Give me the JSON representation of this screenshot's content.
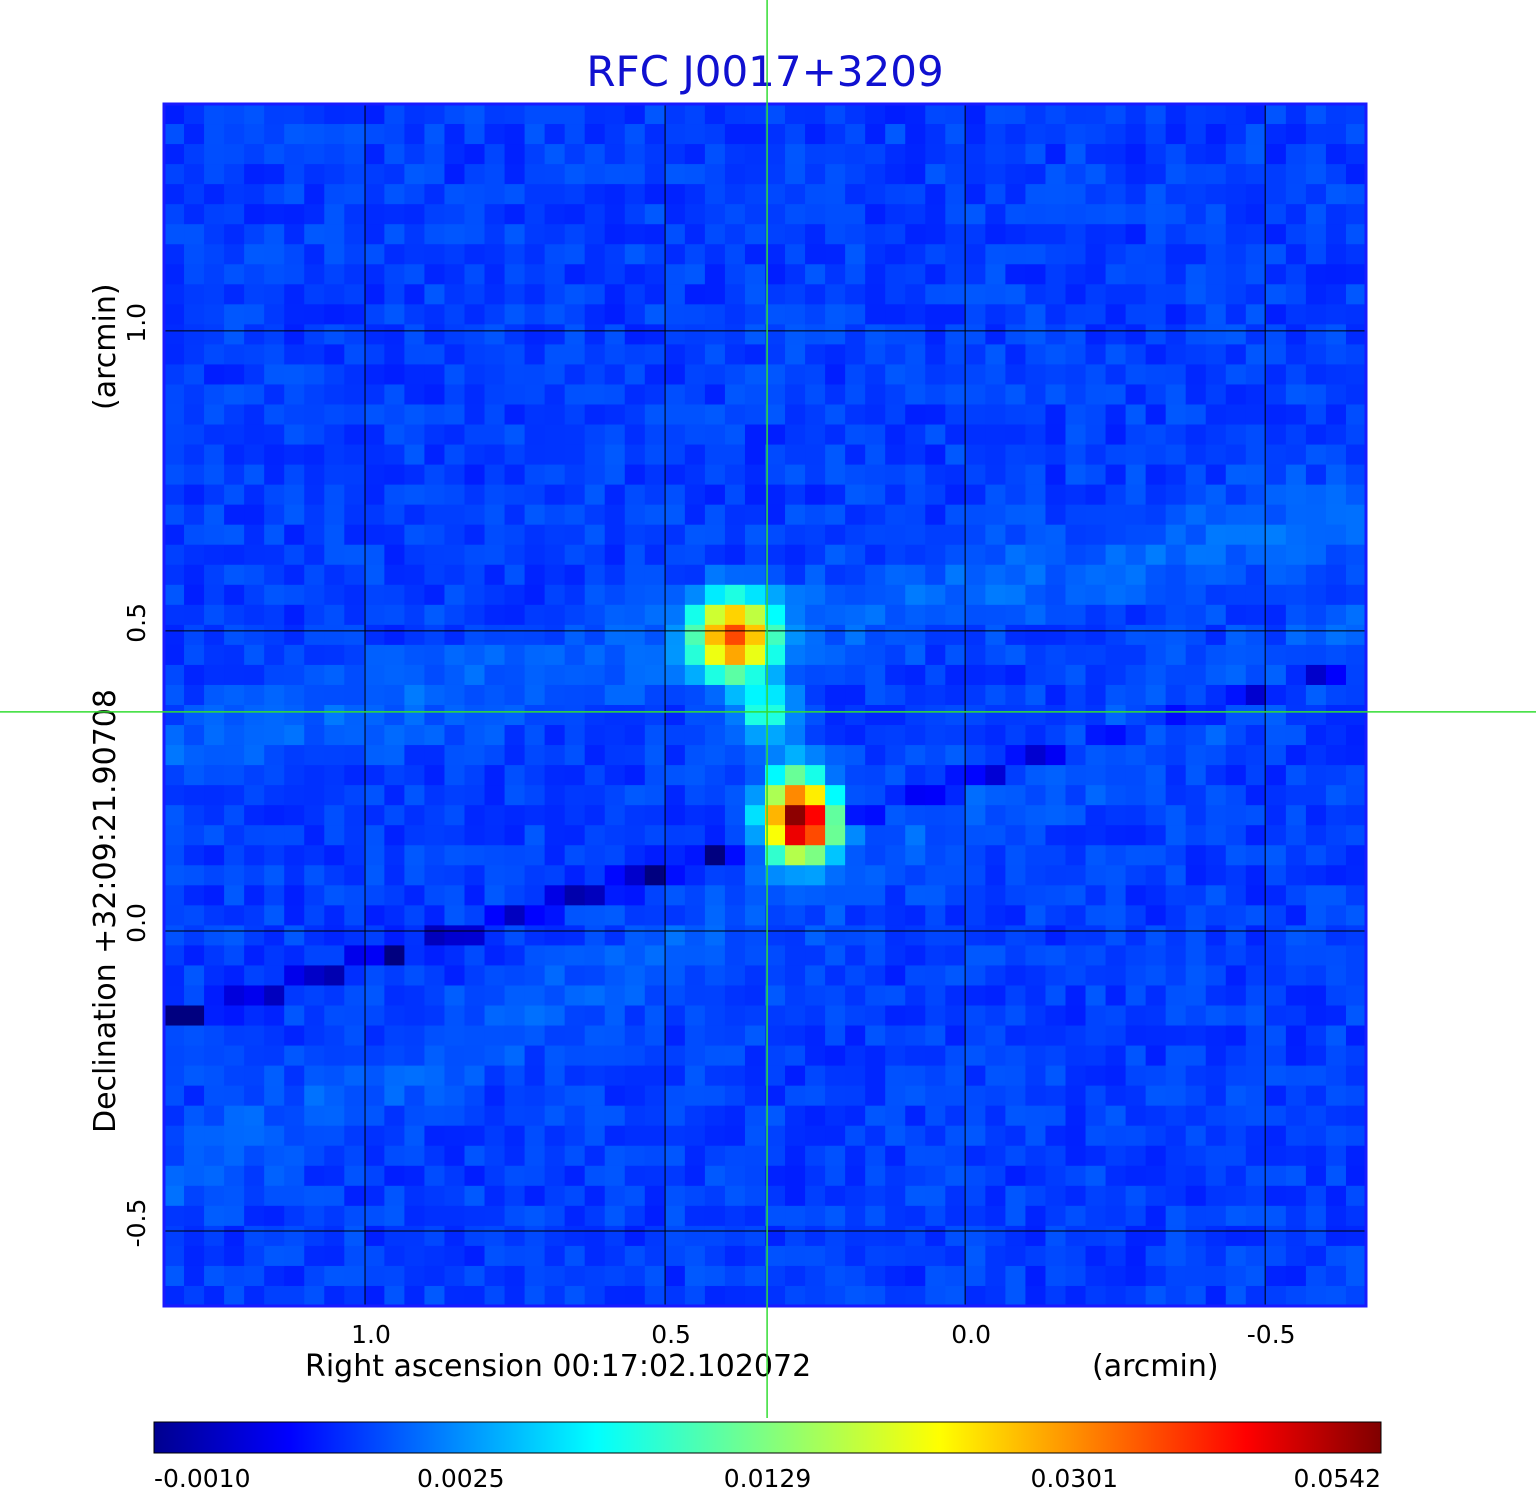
{
  "chart_data": {
    "type": "heatmap",
    "title": "RFC J0017+3209",
    "title_color": "#1010d0",
    "xlabel": "Right ascension  00:17:02.102072",
    "xunit": "(arcmin)",
    "ylabel": "Declination  +32:09:21.90708",
    "yunit": "(arcmin)",
    "x_ticks": [
      {
        "value": 1.0,
        "label": "1.0"
      },
      {
        "value": 0.5,
        "label": "0.5"
      },
      {
        "value": 0.0,
        "label": "0.0"
      },
      {
        "value": -0.5,
        "label": "-0.5"
      }
    ],
    "y_ticks": [
      {
        "value": 1.0,
        "label": "1.0"
      },
      {
        "value": 0.5,
        "label": "0.5"
      },
      {
        "value": 0.0,
        "label": "0.0"
      },
      {
        "value": -0.5,
        "label": "-0.5"
      }
    ],
    "xlim": [
      1.335,
      -0.668
    ],
    "ylim": [
      -0.625,
      1.378
    ],
    "grid": true,
    "crosshair": {
      "x": 0.33,
      "y": 0.365,
      "color": "#33dd33"
    },
    "colormap": "jet",
    "colorbar": {
      "ticks": [
        "-0.0010",
        "0.0025",
        "0.0129",
        "0.0301",
        "0.0542"
      ],
      "min": -0.001,
      "max": 0.0542
    },
    "background_level": 0.0009,
    "sources": [
      {
        "x": 0.275,
        "y": 0.18,
        "peak": 0.0542,
        "sigma": 0.034
      },
      {
        "x": 0.28,
        "y": 0.24,
        "peak": 0.0085,
        "sigma": 0.032
      },
      {
        "x": 0.385,
        "y": 0.49,
        "peak": 0.033,
        "sigma": 0.04
      },
      {
        "x": 0.33,
        "y": 0.365,
        "peak": 0.0085,
        "sigma": 0.028
      }
    ],
    "artifacts": [
      {
        "kind": "negative-stripe",
        "from": [
          1.335,
          -0.15
        ],
        "to": [
          -0.668,
          0.45
        ],
        "amplitude": -0.0018
      },
      {
        "kind": "positive-stripe",
        "from": [
          1.335,
          0.3
        ],
        "to": [
          -0.668,
          0.7
        ],
        "amplitude": 0.0009
      },
      {
        "kind": "positive-stripe",
        "from": [
          1.335,
          -0.42
        ],
        "to": [
          0.2,
          0.1
        ],
        "amplitude": 0.0007
      }
    ]
  }
}
